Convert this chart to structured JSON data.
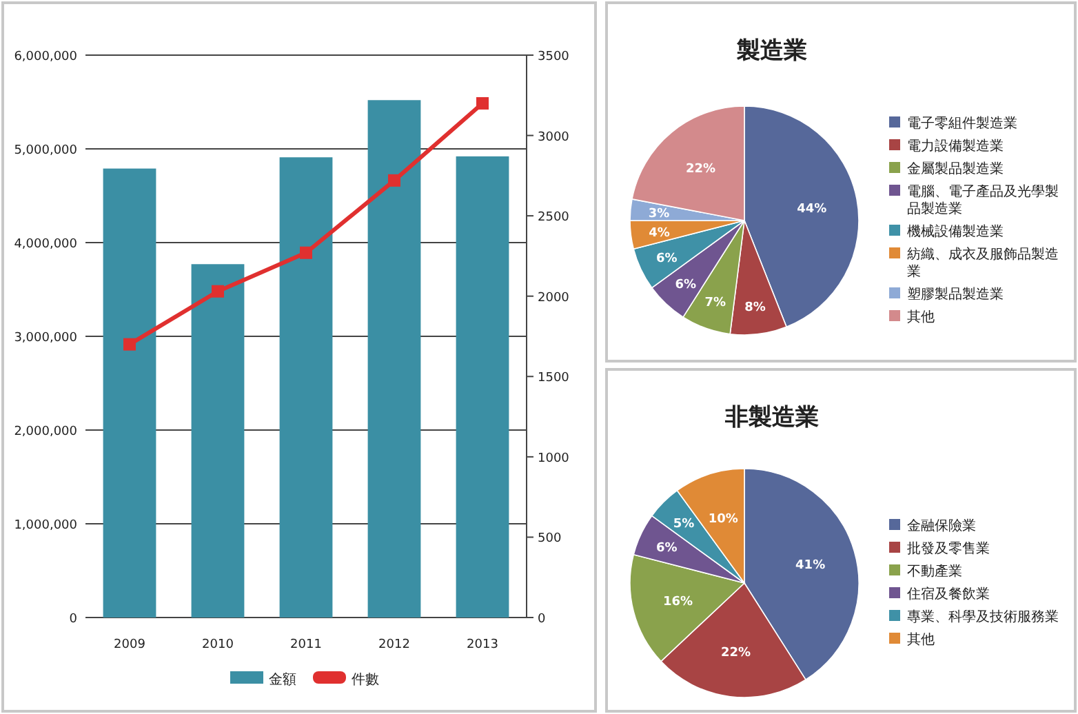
{
  "chart_data": [
    {
      "type": "bar",
      "categories": [
        "2009",
        "2010",
        "2011",
        "2012",
        "2013"
      ],
      "series": [
        {
          "name": "金額",
          "color": "#3b8fa4",
          "values": [
            4790000,
            3770000,
            4910000,
            5520000,
            4920000
          ]
        },
        {
          "name": "件數",
          "type": "line",
          "axis": "y2",
          "color": "#e0302f",
          "values": [
            1700,
            2030,
            2270,
            2720,
            3200
          ]
        }
      ],
      "ylim": [
        0,
        6000000
      ],
      "yticks": [
        {
          "value": 0,
          "label": "0"
        },
        {
          "value": 1000000,
          "label": "1,000,000"
        },
        {
          "value": 2000000,
          "label": "2,000,000"
        },
        {
          "value": 3000000,
          "label": "3,000,000"
        },
        {
          "value": 4000000,
          "label": "4,000,000"
        },
        {
          "value": 5000000,
          "label": "5,000,000"
        },
        {
          "value": 6000000,
          "label": "6,000,000"
        }
      ],
      "y2lim": [
        0,
        3500
      ],
      "y2ticks": [
        0,
        500,
        1000,
        1500,
        2000,
        2500,
        3000,
        3500
      ],
      "grid": "y",
      "legend": "bottom",
      "marker": "square"
    },
    {
      "type": "pie",
      "title": "製造業",
      "categories": [
        "電子零組件製造業",
        "電力設備製造業",
        "金屬製品製造業",
        "電腦、電子產品及光學製品製造業",
        "機械設備製造業",
        "紡織、成衣及服飾品製造業",
        "塑膠製品製造業",
        "其他"
      ],
      "values": [
        44,
        8,
        7,
        6,
        6,
        4,
        3,
        22
      ],
      "value_labels": [
        "44%",
        "8%",
        "7%",
        "6%",
        "6%",
        "4%",
        "3%",
        "22%"
      ],
      "colors": [
        "#56689a",
        "#a84444",
        "#8aa24c",
        "#6f5590",
        "#3f91a7",
        "#e08a36",
        "#8eaad6",
        "#d38a8c"
      ],
      "legend": "right"
    },
    {
      "type": "pie",
      "title": "非製造業",
      "categories": [
        "金融保險業",
        "批發及零售業",
        "不動產業",
        "住宿及餐飲業",
        "專業、科學及技術服務業",
        "其他"
      ],
      "values": [
        41,
        22,
        16,
        6,
        5,
        10
      ],
      "value_labels": [
        "41%",
        "22%",
        "16%",
        "6%",
        "5%",
        "10%"
      ],
      "colors": [
        "#56689a",
        "#a84444",
        "#8aa24c",
        "#6f5590",
        "#3f91a7",
        "#e08a36"
      ],
      "legend": "right"
    }
  ]
}
